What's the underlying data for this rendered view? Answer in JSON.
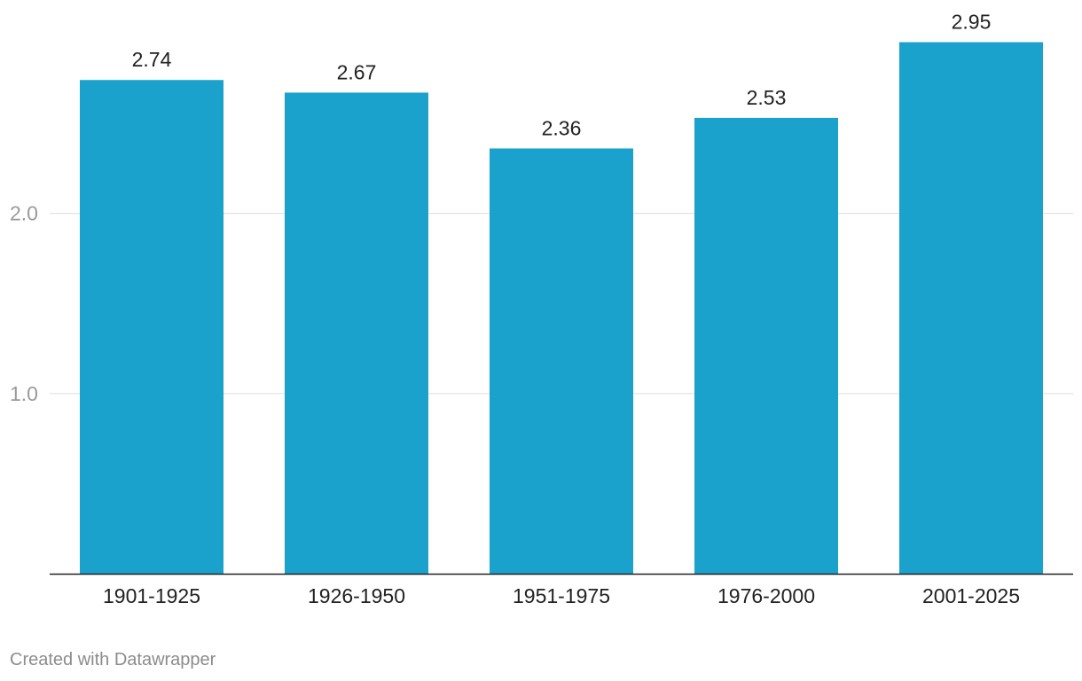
{
  "chart_data": {
    "type": "bar",
    "categories": [
      "1901-1925",
      "1926-1950",
      "1951-1975",
      "1976-2000",
      "2001-2025"
    ],
    "values": [
      2.74,
      2.67,
      2.36,
      2.53,
      2.95
    ],
    "data_labels": [
      "2.74",
      "2.67",
      "2.36",
      "2.53",
      "2.95"
    ],
    "y_ticks": [
      1.0,
      2.0
    ],
    "y_tick_labels": [
      "1.0",
      "2.0"
    ],
    "ylim": [
      0,
      2.95
    ],
    "grid": true,
    "bar_color": "#1aa1cc",
    "title": "",
    "xlabel": "",
    "ylabel": ""
  },
  "footer": {
    "credit": "Created with Datawrapper"
  }
}
